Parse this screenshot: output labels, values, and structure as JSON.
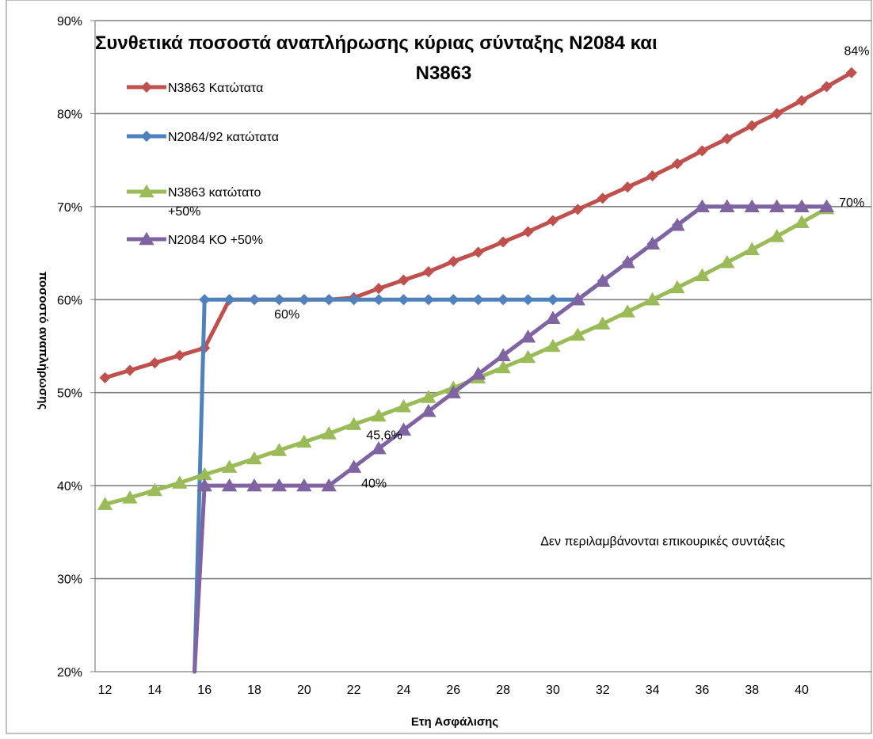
{
  "chart_data": {
    "type": "line",
    "title_line1": "Συνθετικά  ποσοστά αναπλήρωσης κύριας σύνταξης  Ν2084 και",
    "title_line2": "Ν3863",
    "xlabel": "Ετη Ασφάλισης",
    "ylabel": "ποσοστό αναπλήρωσης",
    "ylim": [
      0.2,
      0.9
    ],
    "xlim": [
      11.6,
      42.8
    ],
    "x_ticks": [
      12,
      14,
      16,
      18,
      20,
      22,
      24,
      26,
      28,
      30,
      32,
      34,
      36,
      38,
      40
    ],
    "x_tick_labels": [
      "12",
      "14",
      "16",
      "18",
      "20",
      "22",
      "24",
      "26",
      "28",
      "30",
      "32",
      "34",
      "36",
      "38",
      "40"
    ],
    "y_ticks": [
      0.2,
      0.3,
      0.4,
      0.5,
      0.6,
      0.7,
      0.8,
      0.9
    ],
    "y_tick_labels": [
      "20%",
      "30%",
      "40%",
      "50%",
      "60%",
      "70%",
      "80%",
      "90%"
    ],
    "grid": true,
    "legend_position": "top-left",
    "series": [
      {
        "name": "N3863 Κατώτατα",
        "color": "#c0504d",
        "marker": "diamond",
        "x": [
          12,
          13,
          14,
          15,
          16,
          17,
          18,
          19,
          20,
          21,
          22,
          23,
          24,
          25,
          26,
          27,
          28,
          29,
          30,
          31,
          32,
          33,
          34,
          35,
          36,
          37,
          38,
          39,
          40,
          41,
          42
        ],
        "y": [
          0.516,
          0.524,
          0.532,
          0.54,
          0.548,
          0.6,
          0.6,
          0.6,
          0.6,
          0.6,
          0.602,
          0.612,
          0.621,
          0.63,
          0.641,
          0.651,
          0.662,
          0.673,
          0.685,
          0.697,
          0.709,
          0.721,
          0.733,
          0.746,
          0.76,
          0.773,
          0.787,
          0.8,
          0.814,
          0.829,
          0.844
        ]
      },
      {
        "name": "N2084/92 κατώτατα",
        "color": "#4f81bd",
        "marker": "diamond",
        "x": [
          15.6,
          16,
          17,
          18,
          19,
          20,
          21,
          22,
          23,
          24,
          25,
          26,
          27,
          28,
          29,
          30,
          31,
          32,
          33,
          34,
          35,
          36,
          37,
          38,
          39,
          40,
          41
        ],
        "y": [
          0.2,
          0.6,
          0.6,
          0.6,
          0.6,
          0.6,
          0.6,
          0.6,
          0.6,
          0.6,
          0.6,
          0.6,
          0.6,
          0.6,
          0.6,
          0.6,
          0.6,
          0.62,
          0.64,
          0.66,
          0.68,
          0.7,
          0.7,
          0.7,
          0.7,
          0.7,
          0.7
        ]
      },
      {
        "name": "N3863 κατώτατο +50%",
        "color": "#9bbb59",
        "marker": "triangle",
        "x": [
          12,
          13,
          14,
          15,
          16,
          17,
          18,
          19,
          20,
          21,
          22,
          23,
          24,
          25,
          26,
          27,
          28,
          29,
          30,
          31,
          32,
          33,
          34,
          35,
          36,
          37,
          38,
          39,
          40,
          41
        ],
        "y": [
          0.38,
          0.387,
          0.395,
          0.403,
          0.412,
          0.42,
          0.429,
          0.438,
          0.447,
          0.456,
          0.466,
          0.475,
          0.485,
          0.495,
          0.505,
          0.516,
          0.527,
          0.538,
          0.55,
          0.562,
          0.574,
          0.587,
          0.6,
          0.613,
          0.626,
          0.64,
          0.654,
          0.668,
          0.683,
          0.698
        ]
      },
      {
        "name": "N2084 ΚΟ +50%",
        "color": "#8064a2",
        "marker": "triangle",
        "x": [
          15.6,
          16,
          17,
          18,
          19,
          20,
          21,
          22,
          23,
          24,
          25,
          26,
          27,
          28,
          29,
          30,
          31,
          32,
          33,
          34,
          35,
          36,
          37,
          38,
          39,
          40,
          41
        ],
        "y": [
          0.2,
          0.4,
          0.4,
          0.4,
          0.4,
          0.4,
          0.4,
          0.42,
          0.44,
          0.46,
          0.48,
          0.5,
          0.52,
          0.54,
          0.56,
          0.58,
          0.6,
          0.62,
          0.64,
          0.66,
          0.68,
          0.7,
          0.7,
          0.7,
          0.7,
          0.7,
          0.7
        ]
      }
    ],
    "legend": [
      {
        "label": "N3863 Κατώτατα"
      },
      {
        "label": "N2084/92 κατώτατα"
      },
      {
        "label_line1": "N3863 κατώτατο",
        "label_line2": "+50%"
      },
      {
        "label": "N2084 ΚΟ +50%"
      }
    ],
    "annotations": [
      {
        "text": "84%",
        "x": 41.7,
        "y": 0.863
      },
      {
        "text": "70%",
        "x": 41.5,
        "y": 0.7
      },
      {
        "text": "60%",
        "x": 18.8,
        "y": 0.58
      },
      {
        "text": "45,6%",
        "x": 22.5,
        "y": 0.45
      },
      {
        "text": "40%",
        "x": 22.3,
        "y": 0.398
      },
      {
        "text": "Δεν περιλαμβάνονται επικουρικές συντάξεις",
        "x": 29.5,
        "y": 0.336
      }
    ]
  }
}
